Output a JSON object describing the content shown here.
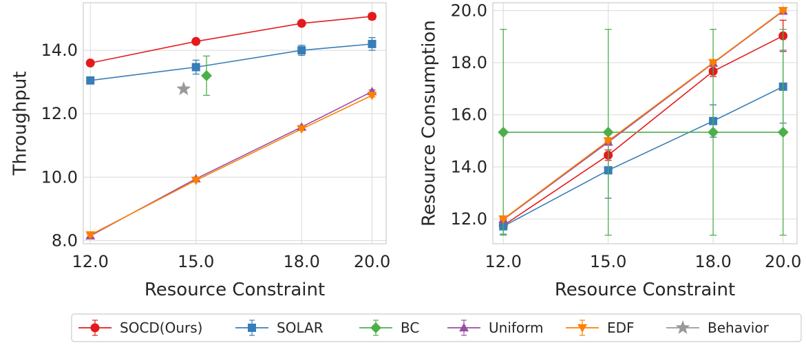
{
  "chart_data": [
    {
      "type": "line",
      "title": "",
      "xlabel": "Resource Constraint",
      "ylabel": "Throughput",
      "grid": true,
      "xlim": [
        11.8,
        20.4
      ],
      "ylim": [
        7.9,
        15.5
      ],
      "x_ticks": [
        12,
        15,
        18,
        20
      ],
      "x_tick_labels": [
        "12.0",
        "15.0",
        "18.0",
        "20.0"
      ],
      "y_ticks": [
        8,
        10,
        12,
        14
      ],
      "y_tick_labels": [
        "8.0",
        "10.0",
        "12.0",
        "14.0"
      ],
      "series": [
        {
          "key": "socd",
          "x": [
            12,
            15,
            18,
            20
          ],
          "y": [
            13.6,
            14.28,
            14.85,
            15.07
          ],
          "err": [
            0.08,
            0.07,
            0.07,
            0.1
          ]
        },
        {
          "key": "solar",
          "x": [
            12,
            15,
            18,
            20
          ],
          "y": [
            13.05,
            13.47,
            14.0,
            14.2
          ],
          "err": [
            0.06,
            0.22,
            0.16,
            0.2
          ]
        },
        {
          "key": "bc",
          "x": [
            15.3
          ],
          "y": [
            13.2
          ],
          "err": [
            0.62
          ]
        },
        {
          "key": "uniform",
          "x": [
            12,
            15,
            18,
            20
          ],
          "y": [
            8.15,
            9.95,
            11.58,
            12.7
          ],
          "err": [
            0.05,
            0.05,
            0.05,
            0.05
          ]
        },
        {
          "key": "edf",
          "x": [
            12,
            15,
            18,
            20
          ],
          "y": [
            8.18,
            9.9,
            11.52,
            12.58
          ],
          "err": [
            0.05,
            0.05,
            0.05,
            0.05
          ]
        },
        {
          "key": "behavior",
          "x": [
            14.65
          ],
          "y": [
            12.78
          ],
          "err": [
            0
          ]
        }
      ]
    },
    {
      "type": "line",
      "title": "",
      "xlabel": "Resource Constraint",
      "ylabel": "Resource Consumption",
      "grid": true,
      "xlim": [
        11.7,
        20.4
      ],
      "ylim": [
        11.05,
        20.3
      ],
      "x_ticks": [
        12,
        15,
        18,
        20
      ],
      "x_tick_labels": [
        "12.0",
        "15.0",
        "18.0",
        "20.0"
      ],
      "y_ticks": [
        12,
        14,
        16,
        18,
        20
      ],
      "y_tick_labels": [
        "12.0",
        "14.0",
        "16.0",
        "18.0",
        "20.0"
      ],
      "series": [
        {
          "key": "socd",
          "x": [
            12,
            15,
            18,
            20
          ],
          "y": [
            11.75,
            14.45,
            17.67,
            19.03
          ],
          "err": [
            0.12,
            0.2,
            0.2,
            0.6
          ]
        },
        {
          "key": "solar",
          "x": [
            12,
            15,
            18,
            20
          ],
          "y": [
            11.72,
            13.87,
            15.76,
            17.08
          ],
          "err": [
            0.3,
            1.07,
            0.62,
            1.4
          ]
        },
        {
          "key": "bc",
          "x": [
            12,
            15,
            18,
            20
          ],
          "y": [
            15.33,
            15.33,
            15.33,
            15.33
          ],
          "err": [
            3.95,
            3.95,
            3.95,
            3.95
          ]
        },
        {
          "key": "uniform",
          "x": [
            12,
            15,
            18,
            20
          ],
          "y": [
            11.98,
            14.95,
            17.98,
            19.98
          ],
          "err": [
            0.03,
            0.03,
            0.03,
            0.03
          ]
        },
        {
          "key": "edf",
          "x": [
            12,
            15,
            18,
            20
          ],
          "y": [
            12.0,
            15.0,
            18.0,
            20.0
          ],
          "err": [
            0.03,
            0.03,
            0.03,
            0.03
          ]
        }
      ]
    }
  ],
  "legend": {
    "placement": "bottom",
    "items": [
      {
        "key": "socd",
        "name": "SOCD(Ours)",
        "color": "#e41a1c",
        "marker": "circle"
      },
      {
        "key": "solar",
        "name": "SOLAR",
        "color": "#377eb8",
        "marker": "square"
      },
      {
        "key": "bc",
        "name": "BC",
        "color": "#4daf4a",
        "marker": "diamond"
      },
      {
        "key": "uniform",
        "name": "Uniform",
        "color": "#984ea3",
        "marker": "triangle-up"
      },
      {
        "key": "edf",
        "name": "EDF",
        "color": "#ff7f00",
        "marker": "triangle-down"
      },
      {
        "key": "behavior",
        "name": "Behavior",
        "color": "#999999",
        "marker": "star"
      }
    ]
  }
}
